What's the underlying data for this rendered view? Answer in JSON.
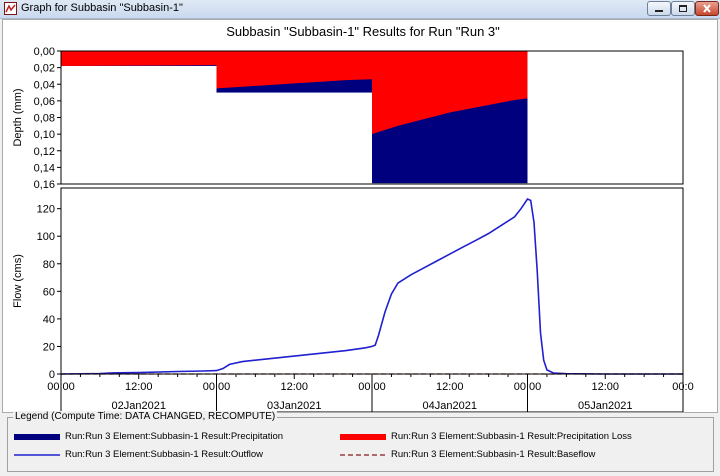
{
  "window": {
    "title": "Graph for Subbasin \"Subbasin-1\""
  },
  "chart": {
    "title": "Subbasin \"Subbasin-1\" Results for Run \"Run 3\""
  },
  "chart_data": {
    "type": "area+line",
    "title": "Subbasin \"Subbasin-1\" Results for Run \"Run 3\"",
    "x_time_labels": [
      "00:00",
      "12:00",
      "00:00",
      "12:00",
      "00:00",
      "12:00",
      "00:00",
      "12:00",
      "00:0"
    ],
    "x_day_labels": [
      "02Jan2021",
      "03Jan2021",
      "04Jan2021",
      "05Jan2021"
    ],
    "x_range_hours": [
      0,
      96
    ],
    "grid": false,
    "legend_position": "bottom",
    "depth_panel": {
      "ylabel": "Depth (mm)",
      "inverted": true,
      "ylim": [
        0,
        0.16
      ],
      "tick_labels": [
        "0,00",
        "0,02",
        "0,04",
        "0,06",
        "0,08",
        "0,10",
        "0,12",
        "0,14",
        "0,16"
      ],
      "tick_values": [
        0,
        0.02,
        0.04,
        0.06,
        0.08,
        0.1,
        0.12,
        0.14,
        0.16
      ],
      "precipitation": [
        {
          "start": 0,
          "end": 24,
          "value": 0.018
        },
        {
          "start": 24,
          "end": 48,
          "value": 0.05
        },
        {
          "start": 48,
          "end": 72,
          "value": 0.159
        }
      ],
      "precipitation_loss": [
        {
          "start": 0,
          "end": 24,
          "points": [
            [
              0,
              0.018
            ],
            [
              24,
              0.017
            ]
          ]
        },
        {
          "start": 24,
          "end": 48,
          "points": [
            [
              24,
              0.045
            ],
            [
              28,
              0.043
            ],
            [
              32,
              0.041
            ],
            [
              36,
              0.039
            ],
            [
              40,
              0.037
            ],
            [
              44,
              0.035
            ],
            [
              48,
              0.034
            ]
          ]
        },
        {
          "start": 48,
          "end": 72,
          "points": [
            [
              48,
              0.1
            ],
            [
              50,
              0.095
            ],
            [
              52,
              0.09
            ],
            [
              54,
              0.086
            ],
            [
              56,
              0.082
            ],
            [
              58,
              0.078
            ],
            [
              60,
              0.074
            ],
            [
              62,
              0.071
            ],
            [
              64,
              0.068
            ],
            [
              66,
              0.065
            ],
            [
              68,
              0.062
            ],
            [
              70,
              0.059
            ],
            [
              72,
              0.057
            ]
          ]
        }
      ]
    },
    "flow_panel": {
      "ylabel": "Flow (cms)",
      "ylim": [
        0,
        135
      ],
      "tick_labels": [
        "0",
        "20",
        "40",
        "60",
        "80",
        "100",
        "120"
      ],
      "tick_values": [
        0,
        20,
        40,
        60,
        80,
        100,
        120
      ],
      "series": [
        {
          "name": "Outflow",
          "style": "solid",
          "color": "#2020d0",
          "points": [
            [
              0,
              0
            ],
            [
              6,
              0.3
            ],
            [
              8,
              0.8
            ],
            [
              12,
              1.0
            ],
            [
              18,
              1.8
            ],
            [
              22,
              2.2
            ],
            [
              24,
              2.5
            ],
            [
              25,
              4
            ],
            [
              26,
              7
            ],
            [
              28,
              9
            ],
            [
              32,
              11
            ],
            [
              36,
              13
            ],
            [
              40,
              15
            ],
            [
              44,
              17
            ],
            [
              47,
              19
            ],
            [
              48,
              20
            ],
            [
              48.5,
              21
            ],
            [
              49,
              28
            ],
            [
              50,
              45
            ],
            [
              51,
              58
            ],
            [
              52,
              66
            ],
            [
              54,
              72
            ],
            [
              56,
              77
            ],
            [
              58,
              82
            ],
            [
              60,
              87
            ],
            [
              62,
              92
            ],
            [
              64,
              97
            ],
            [
              66,
              102
            ],
            [
              68,
              108
            ],
            [
              70,
              114
            ],
            [
              71,
              120
            ],
            [
              72,
              127
            ],
            [
              72.5,
              126
            ],
            [
              73,
              110
            ],
            [
              73.5,
              75
            ],
            [
              74,
              30
            ],
            [
              74.5,
              10
            ],
            [
              75,
              3
            ],
            [
              76,
              0.7
            ],
            [
              78,
              0.2
            ],
            [
              84,
              0
            ],
            [
              96,
              0
            ]
          ]
        },
        {
          "name": "Baseflow",
          "style": "dashed",
          "color": "#8b1a1a",
          "points": [
            [
              0,
              0
            ],
            [
              96,
              0
            ]
          ]
        }
      ]
    }
  },
  "legend": {
    "title": "Legend (Compute Time: DATA CHANGED, RECOMPUTE)",
    "entries": [
      {
        "label": "Run:Run 3 Element:Subbasin-1 Result:Precipitation",
        "color": "#00007f",
        "style": "thick"
      },
      {
        "label": "Run:Run 3 Element:Subbasin-1 Result:Precipitation Loss",
        "color": "#ff0000",
        "style": "thick"
      },
      {
        "label": "Run:Run 3 Element:Subbasin-1 Result:Outflow",
        "color": "#2020d0",
        "style": "solid"
      },
      {
        "label": "Run:Run 3 Element:Subbasin-1 Result:Baseflow",
        "color": "#8b1a1a",
        "style": "dashed"
      }
    ]
  }
}
